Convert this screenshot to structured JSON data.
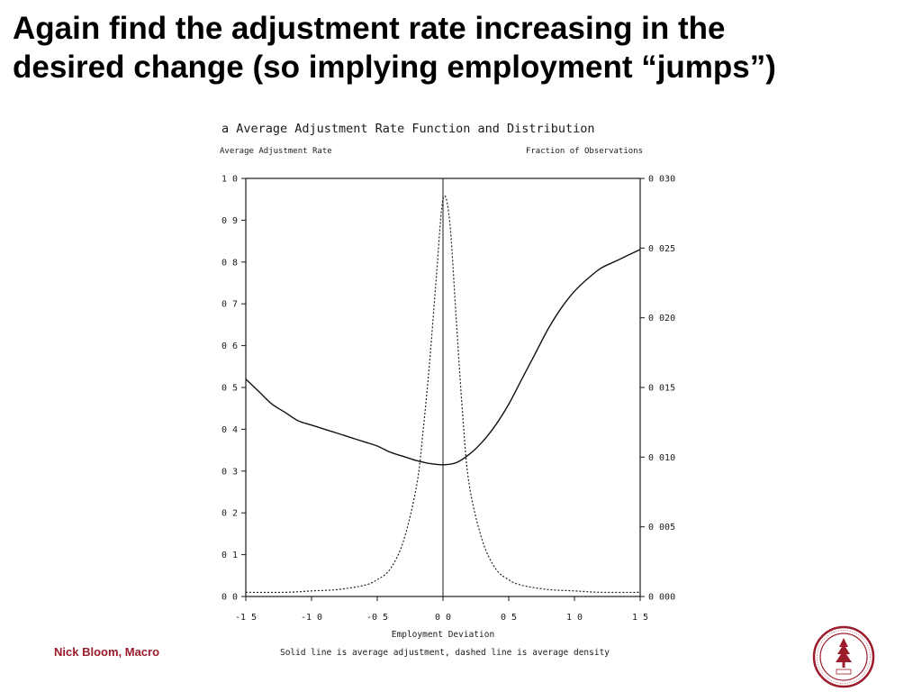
{
  "slide": {
    "title_line1": "Again find the adjustment rate increasing in the",
    "title_line2": "desired change (so implying employment “jumps”)",
    "footer": "Nick Bloom, Macro",
    "seal_icon": "stanford-seal-icon",
    "accent_color": "#9b1c2a"
  },
  "chart_data": {
    "type": "line",
    "title": "a   Average Adjustment Rate Function and Distribution",
    "ylabel_left": "Average Adjustment Rate",
    "ylabel_right": "Fraction of Observations",
    "xlabel": "Employment Deviation",
    "note": "Solid line is average adjustment, dashed line is average density",
    "xlim": [
      -1.5,
      1.5
    ],
    "ylim_left": [
      0,
      1.0
    ],
    "ylim_right": [
      0,
      0.03
    ],
    "x_ticks": [
      "-1 5",
      "-1 0",
      "-0 5",
      "0 0",
      "0 5",
      "1 0",
      "1 5"
    ],
    "x_tick_values": [
      -1.5,
      -1.0,
      -0.5,
      0.0,
      0.5,
      1.0,
      1.5
    ],
    "y_left_ticks": [
      "1 0",
      "0 9",
      "0 8",
      "0 7",
      "0 6",
      "0 5",
      "0 4",
      "0 3",
      "0 2",
      "0 1",
      "0 0"
    ],
    "y_left_tick_values": [
      1.0,
      0.9,
      0.8,
      0.7,
      0.6,
      0.5,
      0.4,
      0.3,
      0.2,
      0.1,
      0.0
    ],
    "y_right_ticks": [
      "0 030",
      "0 025",
      "0 020",
      "0 015",
      "0 010",
      "0 005",
      "0 000"
    ],
    "y_right_tick_values": [
      0.03,
      0.025,
      0.02,
      0.015,
      0.01,
      0.005,
      0.0
    ],
    "vertical_line_x": 0.0,
    "grid": false,
    "series": [
      {
        "name": "average adjustment",
        "style": "solid",
        "axis": "left",
        "x": [
          -1.5,
          -1.4,
          -1.3,
          -1.2,
          -1.1,
          -1.0,
          -0.9,
          -0.8,
          -0.7,
          -0.6,
          -0.5,
          -0.4,
          -0.3,
          -0.2,
          -0.1,
          0.0,
          0.1,
          0.2,
          0.3,
          0.4,
          0.5,
          0.6,
          0.7,
          0.8,
          0.9,
          1.0,
          1.1,
          1.2,
          1.3,
          1.4,
          1.5
        ],
        "y": [
          0.52,
          0.49,
          0.46,
          0.44,
          0.42,
          0.41,
          0.4,
          0.39,
          0.38,
          0.37,
          0.36,
          0.345,
          0.335,
          0.325,
          0.318,
          0.315,
          0.32,
          0.34,
          0.37,
          0.41,
          0.46,
          0.52,
          0.58,
          0.64,
          0.69,
          0.73,
          0.76,
          0.785,
          0.8,
          0.815,
          0.83
        ]
      },
      {
        "name": "average density",
        "style": "dashed",
        "axis": "right",
        "x": [
          -1.5,
          -1.2,
          -1.0,
          -0.8,
          -0.6,
          -0.5,
          -0.4,
          -0.3,
          -0.2,
          -0.15,
          -0.1,
          -0.05,
          0.0,
          0.05,
          0.1,
          0.15,
          0.2,
          0.3,
          0.4,
          0.5,
          0.6,
          0.8,
          1.0,
          1.2,
          1.5
        ],
        "y": [
          0.0003,
          0.0003,
          0.0004,
          0.0005,
          0.0008,
          0.0012,
          0.002,
          0.004,
          0.008,
          0.012,
          0.017,
          0.023,
          0.0285,
          0.027,
          0.02,
          0.013,
          0.008,
          0.004,
          0.002,
          0.0012,
          0.0008,
          0.0005,
          0.0004,
          0.0003,
          0.0003
        ]
      }
    ]
  }
}
